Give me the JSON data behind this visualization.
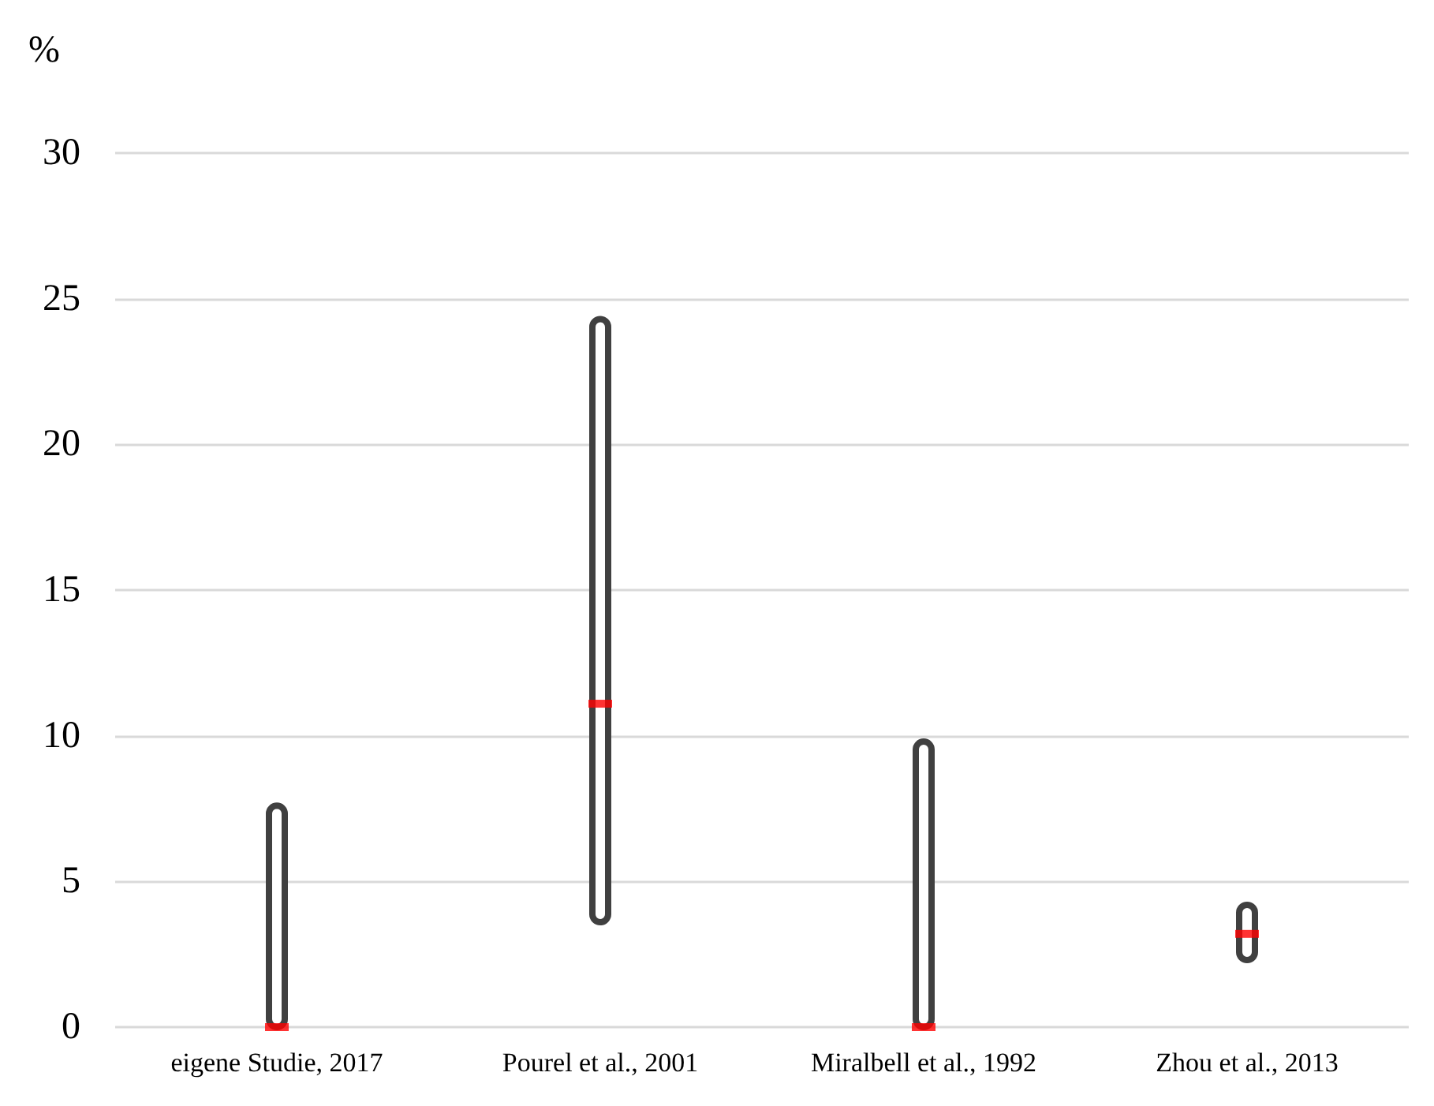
{
  "chart_data": {
    "type": "bar",
    "ylabel": "%",
    "categories": [
      "eigene Studie, 2017",
      "Pourel et al., 2001",
      "Miralbell et al., 1992",
      "Zhou et al., 2013"
    ],
    "series": [
      {
        "type": "bar",
        "color": "#404040",
        "base": [
          0,
          3.6,
          0,
          2.3
        ],
        "values": [
          7.6,
          20.7,
          9.8,
          1.9
        ]
      },
      {
        "type": "scatter",
        "color": "#ff0000",
        "x": [
          "eigene Studie, 2017",
          "Pourel et al., 2001",
          "Miralbell et al., 1992",
          "Zhou et al., 2013"
        ],
        "values": [
          0,
          11.1,
          0,
          3.2
        ]
      }
    ],
    "ylim": [
      0,
      30
    ],
    "yticks": [
      0,
      5,
      10,
      15,
      20,
      25,
      30
    ],
    "grid": "y"
  }
}
